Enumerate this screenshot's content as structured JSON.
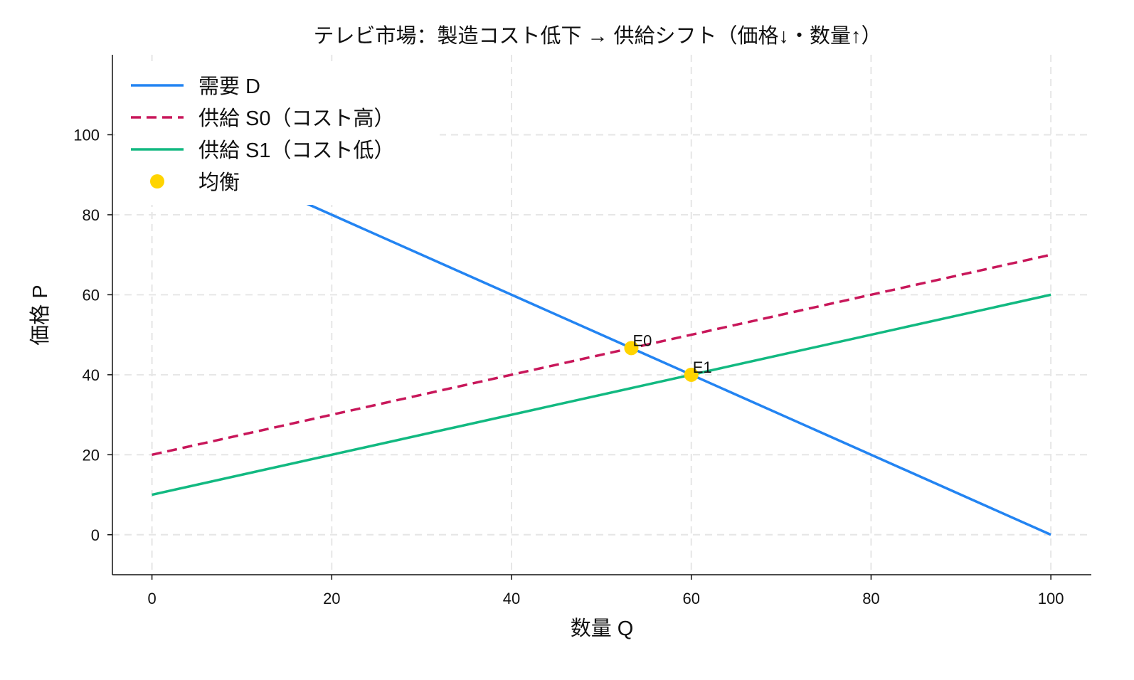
{
  "chart_data": {
    "type": "line",
    "title": "テレビ市場：製造コスト低下 → 供給シフト（価格↓・数量↑）",
    "xlabel": "数量 Q",
    "ylabel": "価格 P",
    "xlim": [
      -4.4,
      104.5
    ],
    "ylim": [
      -10,
      120
    ],
    "xticks": [
      0,
      20,
      40,
      60,
      80,
      100
    ],
    "yticks": [
      0,
      20,
      40,
      60,
      80,
      100
    ],
    "grid": true,
    "legend_position": "top-left",
    "series": [
      {
        "name": "需要 D",
        "color": "#2384F2",
        "style": "solid",
        "x": [
          0,
          100
        ],
        "y": [
          100,
          0
        ]
      },
      {
        "name": "供給 S0（コスト高）",
        "color": "#C8175A",
        "style": "dashed",
        "x": [
          0,
          100
        ],
        "y": [
          20,
          70
        ]
      },
      {
        "name": "供給 S1（コスト低）",
        "color": "#12B981",
        "style": "solid",
        "x": [
          0,
          100
        ],
        "y": [
          10,
          60
        ]
      }
    ],
    "points": {
      "name": "均衡",
      "color": "#FFD400",
      "items": [
        {
          "label": "E0",
          "x": 53.33,
          "y": 46.67
        },
        {
          "label": "E1",
          "x": 60,
          "y": 40
        }
      ]
    }
  }
}
